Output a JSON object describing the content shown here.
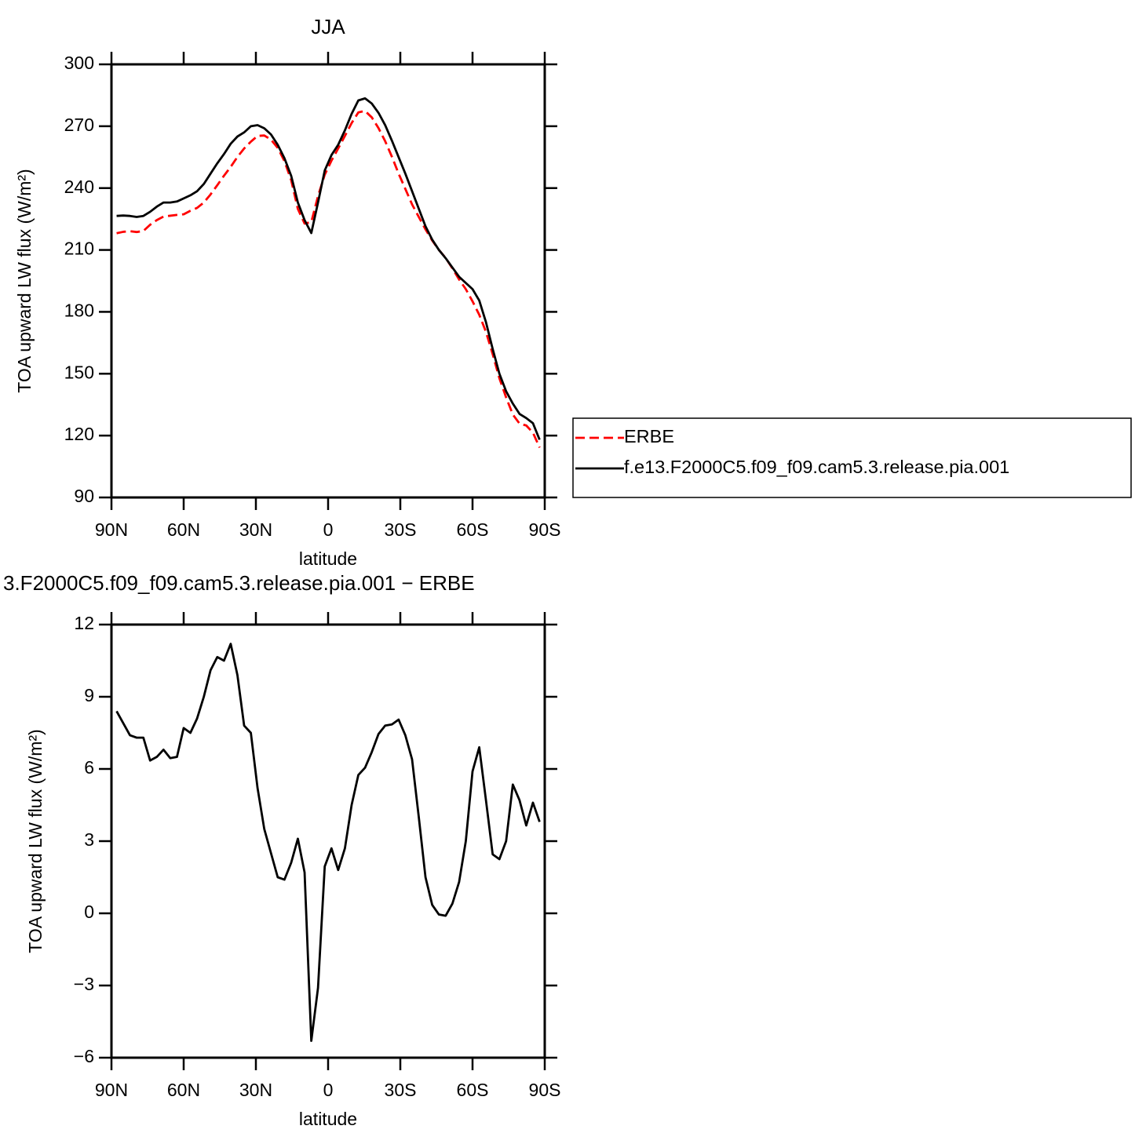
{
  "chart_data": [
    {
      "type": "line",
      "title": "JJA",
      "xlabel": "latitude",
      "ylabel": "TOA upward LW flux (W/m²)",
      "x": [
        87.86,
        85.1,
        82.31,
        79.53,
        76.74,
        73.95,
        71.16,
        68.37,
        65.58,
        62.79,
        60.0,
        57.21,
        54.42,
        51.63,
        48.84,
        46.04,
        43.25,
        40.46,
        37.67,
        34.88,
        32.09,
        29.3,
        26.51,
        23.72,
        20.93,
        18.14,
        15.35,
        12.56,
        9.77,
        6.98,
        4.19,
        1.4,
        -1.4,
        -4.19,
        -6.98,
        -9.77,
        -12.56,
        -15.35,
        -18.14,
        -20.93,
        -23.72,
        -26.51,
        -29.3,
        -32.09,
        -34.88,
        -37.67,
        -40.46,
        -43.25,
        -46.04,
        -48.84,
        -51.63,
        -54.42,
        -57.21,
        -60.0,
        -62.79,
        -65.58,
        -68.37,
        -71.16,
        -73.95,
        -76.74,
        -79.53,
        -82.31,
        -85.1,
        -87.86
      ],
      "xlim": [
        90,
        -90
      ],
      "xticks": [
        {
          "value": 90,
          "label": "90N"
        },
        {
          "value": 60,
          "label": "60N"
        },
        {
          "value": 30,
          "label": "30N"
        },
        0,
        {
          "value": -30,
          "label": "30S"
        },
        {
          "value": -60,
          "label": "60S"
        },
        {
          "value": -90,
          "label": "90S"
        }
      ],
      "ylim": [
        90,
        300
      ],
      "yticks": [
        90,
        120,
        150,
        180,
        210,
        240,
        270,
        300
      ],
      "legend": "right",
      "series": [
        {
          "name": "ERBE",
          "color": "#ff0000",
          "dashed": true,
          "values": [
            218.1,
            218.8,
            219.1,
            218.7,
            219.2,
            222.2,
            224.5,
            226.2,
            226.6,
            227,
            227.3,
            229,
            230.4,
            233,
            236.9,
            241.4,
            246,
            250.3,
            255.1,
            259.2,
            262.5,
            265.3,
            265.5,
            263.5,
            259.5,
            253.1,
            243.9,
            229.9,
            222.8,
            223.5,
            236.1,
            246.5,
            253.3,
            259.2,
            265.3,
            271.5,
            276.7,
            277.4,
            274.3,
            269.1,
            262.7,
            255.2,
            247,
            239.6,
            232.1,
            226,
            220,
            214.6,
            210,
            206.1,
            201.1,
            195.7,
            191,
            185.1,
            178.6,
            170.3,
            159.5,
            147.8,
            138.5,
            130.2,
            125.8,
            124.9,
            121.4,
            114.2
          ]
        },
        {
          "name": "f.e13.F2000C5.f09_f09.cam5.3.release.pia.001",
          "color": "#000000",
          "dashed": false,
          "values": [
            226.5,
            226.7,
            226.5,
            226,
            226.5,
            228.5,
            231,
            233,
            233,
            233.5,
            235,
            236.5,
            238.5,
            242,
            247,
            252,
            256.5,
            261.5,
            265,
            267,
            270,
            270.5,
            269,
            266,
            261,
            254.5,
            246,
            233,
            224.5,
            218.2,
            233,
            248.5,
            256,
            261,
            268,
            276,
            282.5,
            283.5,
            281,
            276.5,
            270.5,
            263,
            255,
            247,
            238.5,
            230,
            221.5,
            215,
            210,
            206,
            201.5,
            197,
            194,
            191,
            185.5,
            175,
            162,
            150,
            141.5,
            135.5,
            130.5,
            128.5,
            126,
            118
          ]
        }
      ]
    },
    {
      "type": "line",
      "title": "3.F2000C5.f09_f09.cam5.3.release.pia.001 − ERBE",
      "xlabel": "latitude",
      "ylabel": "TOA upward LW flux (W/m²)",
      "x": [
        87.86,
        85.1,
        82.31,
        79.53,
        76.74,
        73.95,
        71.16,
        68.37,
        65.58,
        62.79,
        60.0,
        57.21,
        54.42,
        51.63,
        48.84,
        46.04,
        43.25,
        40.46,
        37.67,
        34.88,
        32.09,
        29.3,
        26.51,
        23.72,
        20.93,
        18.14,
        15.35,
        12.56,
        9.77,
        6.98,
        4.19,
        1.4,
        -1.4,
        -4.19,
        -6.98,
        -9.77,
        -12.56,
        -15.35,
        -18.14,
        -20.93,
        -23.72,
        -26.51,
        -29.3,
        -32.09,
        -34.88,
        -37.67,
        -40.46,
        -43.25,
        -46.04,
        -48.84,
        -51.63,
        -54.42,
        -57.21,
        -60.0,
        -62.79,
        -65.58,
        -68.37,
        -71.16,
        -73.95,
        -76.74,
        -79.53,
        -82.31,
        -85.1,
        -87.86
      ],
      "xlim": [
        90,
        -90
      ],
      "xticks": [
        {
          "value": 90,
          "label": "90N"
        },
        {
          "value": 60,
          "label": "60N"
        },
        {
          "value": 30,
          "label": "30N"
        },
        0,
        {
          "value": -30,
          "label": "30S"
        },
        {
          "value": -60,
          "label": "60S"
        },
        {
          "value": -90,
          "label": "90S"
        }
      ],
      "ylim": [
        -6,
        12
      ],
      "yticks": [
        {
          "value": -6,
          "label": "−6"
        },
        {
          "value": -3,
          "label": "−3"
        },
        0,
        3,
        6,
        9,
        12
      ],
      "color": "#000000",
      "values": [
        8.4,
        7.9,
        7.4,
        7.3,
        7.3,
        6.35,
        6.5,
        6.8,
        6.45,
        6.5,
        7.7,
        7.5,
        8.1,
        9.0,
        10.1,
        10.65,
        10.5,
        11.2,
        9.9,
        7.8,
        7.5,
        5.2,
        3.5,
        2.5,
        1.5,
        1.4,
        2.1,
        3.1,
        1.7,
        -5.3,
        -3.1,
        1.95,
        2.7,
        1.8,
        2.7,
        4.5,
        5.75,
        6.05,
        6.7,
        7.45,
        7.8,
        7.85,
        8.05,
        7.4,
        6.4,
        4.0,
        1.5,
        0.35,
        -0.05,
        -0.1,
        0.4,
        1.3,
        3.0,
        5.9,
        6.9,
        4.7,
        2.45,
        2.25,
        3.0,
        5.35,
        4.7,
        3.65,
        4.6,
        3.8
      ]
    }
  ]
}
